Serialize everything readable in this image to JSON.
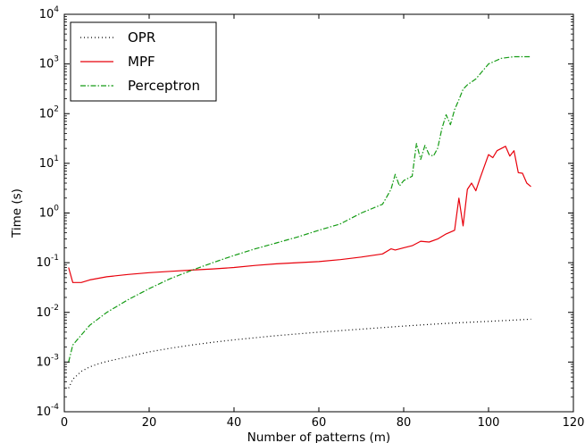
{
  "chart_data": {
    "type": "line",
    "title": "",
    "xlabel": "Number of patterns (m)",
    "ylabel": "Time (s)",
    "xlim": [
      0,
      120
    ],
    "ylim": [
      0.0001,
      10000
    ],
    "yscale": "log",
    "x_ticks": [
      "0",
      "20",
      "40",
      "60",
      "80",
      "100",
      "120"
    ],
    "y_ticks": [
      {
        "base": "10",
        "exp": "-4",
        "value": 0.0001
      },
      {
        "base": "10",
        "exp": "-3",
        "value": 0.001
      },
      {
        "base": "10",
        "exp": "-2",
        "value": 0.01
      },
      {
        "base": "10",
        "exp": "-1",
        "value": 0.1
      },
      {
        "base": "10",
        "exp": "0",
        "value": 1
      },
      {
        "base": "10",
        "exp": "1",
        "value": 10
      },
      {
        "base": "10",
        "exp": "2",
        "value": 100
      },
      {
        "base": "10",
        "exp": "3",
        "value": 1000
      },
      {
        "base": "10",
        "exp": "4",
        "value": 10000
      }
    ],
    "grid": false,
    "legend_position": "top-left",
    "series": [
      {
        "name": "OPR",
        "color": "#000000",
        "style": "dotted",
        "x": [
          1,
          2,
          4,
          6,
          8,
          10,
          15,
          20,
          25,
          30,
          35,
          40,
          50,
          60,
          70,
          80,
          90,
          100,
          110
        ],
        "y": [
          0.0003,
          0.00045,
          0.00065,
          0.0008,
          0.00092,
          0.00103,
          0.00128,
          0.0016,
          0.0019,
          0.0022,
          0.0025,
          0.0028,
          0.0034,
          0.004,
          0.0046,
          0.0053,
          0.006,
          0.0066,
          0.0073
        ]
      },
      {
        "name": "MPF",
        "color": "#e8000b",
        "style": "solid",
        "x": [
          1,
          2,
          4,
          6,
          10,
          15,
          20,
          25,
          30,
          35,
          40,
          45,
          50,
          55,
          60,
          65,
          70,
          75,
          77,
          78,
          80,
          82,
          84,
          86,
          88,
          90,
          92,
          93,
          94,
          95,
          96,
          97,
          98,
          100,
          101,
          102,
          104,
          105,
          106,
          107,
          108,
          109,
          110
        ],
        "y": [
          0.08,
          0.04,
          0.04,
          0.045,
          0.052,
          0.058,
          0.063,
          0.067,
          0.071,
          0.075,
          0.08,
          0.088,
          0.095,
          0.1,
          0.105,
          0.115,
          0.13,
          0.15,
          0.19,
          0.18,
          0.2,
          0.22,
          0.27,
          0.26,
          0.3,
          0.38,
          0.45,
          2.0,
          0.55,
          3.0,
          4.0,
          2.8,
          5.0,
          15.0,
          13.0,
          18.0,
          22.0,
          14.0,
          18.0,
          6.5,
          6.3,
          4.0,
          3.4
        ]
      },
      {
        "name": "Perceptron",
        "color": "#149b14",
        "style": "dashdot",
        "x": [
          1,
          2,
          4,
          6,
          10,
          15,
          20,
          25,
          30,
          35,
          40,
          45,
          50,
          55,
          60,
          65,
          70,
          75,
          77,
          78,
          79,
          80,
          82,
          83,
          84,
          85,
          86,
          87,
          88,
          89,
          90,
          91,
          92,
          93,
          94,
          95,
          97,
          100,
          103,
          106,
          110
        ],
        "y": [
          0.001,
          0.0022,
          0.0035,
          0.0055,
          0.01,
          0.018,
          0.03,
          0.048,
          0.07,
          0.1,
          0.14,
          0.19,
          0.25,
          0.33,
          0.45,
          0.6,
          1.0,
          1.5,
          3.0,
          6.0,
          3.5,
          4.5,
          5.5,
          25.0,
          12.0,
          23.0,
          15.0,
          14.0,
          20.0,
          50.0,
          95.0,
          60.0,
          120.0,
          190.0,
          310.0,
          380.0,
          500.0,
          1000.0,
          1300.0,
          1400.0,
          1400.0
        ]
      }
    ]
  }
}
